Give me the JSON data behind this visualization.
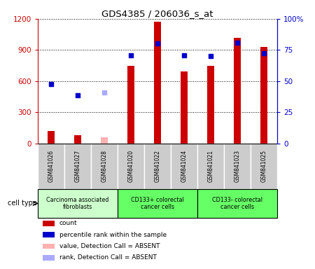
{
  "title": "GDS4385 / 206036_s_at",
  "samples": [
    "GSM841026",
    "GSM841027",
    "GSM841028",
    "GSM841020",
    "GSM841022",
    "GSM841024",
    "GSM841021",
    "GSM841023",
    "GSM841025"
  ],
  "bar_values": [
    120,
    80,
    null,
    750,
    1170,
    690,
    750,
    1020,
    930
  ],
  "bar_absent_values": [
    null,
    null,
    55,
    null,
    null,
    null,
    null,
    null,
    null
  ],
  "dot_values": [
    570,
    460,
    null,
    850,
    960,
    850,
    840,
    970,
    870
  ],
  "dot_absent_values": [
    null,
    null,
    490,
    null,
    null,
    null,
    null,
    null,
    null
  ],
  "groups": [
    {
      "label": "Carcinoma associated\nfibroblasts",
      "start": 0,
      "end": 3,
      "color": "#ccffcc"
    },
    {
      "label": "CD133+ colorectal\ncancer cells",
      "start": 3,
      "end": 6,
      "color": "#66ff66"
    },
    {
      "label": "CD133- colorectal\ncancer cells",
      "start": 6,
      "end": 9,
      "color": "#66ff66"
    }
  ],
  "ylim_left": [
    0,
    1200
  ],
  "ylim_right": [
    0,
    100
  ],
  "yticks_left": [
    0,
    300,
    600,
    900,
    1200
  ],
  "yticks_right": [
    0,
    25,
    50,
    75,
    100
  ],
  "ytick_labels_left": [
    "0",
    "300",
    "600",
    "900",
    "1200"
  ],
  "ytick_labels_right": [
    "0",
    "25",
    "50",
    "75",
    "100%"
  ],
  "left_axis_color": "#cc0000",
  "right_axis_color": "#0000cc",
  "red_color": "#cc0000",
  "pink_color": "#ffb0b0",
  "blue_color": "#0000cc",
  "light_blue_color": "#aaaaff",
  "legend_labels": [
    "count",
    "percentile rank within the sample",
    "value, Detection Call = ABSENT",
    "rank, Detection Call = ABSENT"
  ],
  "legend_colors": [
    "#cc0000",
    "#0000cc",
    "#ffb0b0",
    "#aaaaff"
  ],
  "cell_type_label": "cell type",
  "sample_box_color": "#cccccc",
  "bar_width": 0.25
}
